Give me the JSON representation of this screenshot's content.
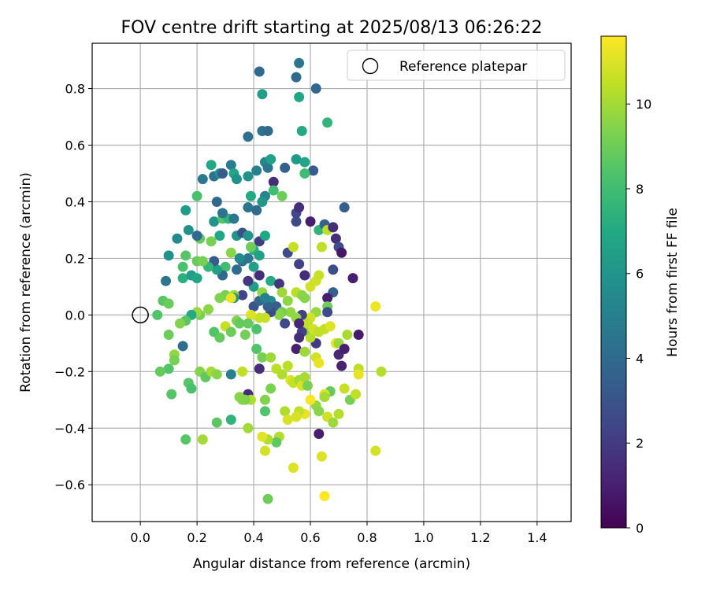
{
  "chart_data": {
    "type": "scatter",
    "title": "FOV centre drift starting at 2025/08/13 06:26:22",
    "xlabel": "Angular distance from reference (arcmin)",
    "ylabel": "Rotation from reference (arcmin)",
    "xlim": [
      -0.17,
      1.52
    ],
    "ylim": [
      -0.73,
      0.96
    ],
    "xticks": [
      0.0,
      0.2,
      0.4,
      0.6,
      0.8,
      1.0,
      1.2,
      1.4
    ],
    "xtick_labels": [
      "0.0",
      "0.2",
      "0.4",
      "0.6",
      "0.8",
      "1.0",
      "1.2",
      "1.4"
    ],
    "yticks": [
      -0.6,
      -0.4,
      -0.2,
      0.0,
      0.2,
      0.4,
      0.6,
      0.8
    ],
    "ytick_labels": [
      "−0.6",
      "−0.4",
      "−0.2",
      "0.0",
      "0.2",
      "0.4",
      "0.6",
      "0.8"
    ],
    "grid": true,
    "legend": {
      "placement": "top-right",
      "entries": [
        "Reference platepar"
      ]
    },
    "reference_point": {
      "x": 0.0,
      "y": 0.0,
      "label": "Reference platepar"
    },
    "colorbar": {
      "label": "Hours from first FF file",
      "range": [
        0,
        11.6
      ],
      "ticks": [
        0,
        2,
        4,
        6,
        8,
        10
      ],
      "tick_labels": [
        "0",
        "2",
        "4",
        "6",
        "8",
        "10"
      ],
      "colormap": "viridis"
    },
    "points_columns": [
      "x",
      "y",
      "hours"
    ],
    "points": [
      [
        0.08,
        0.05,
        8.6
      ],
      [
        0.06,
        0.0,
        8.4
      ],
      [
        0.1,
        0.04,
        8.9
      ],
      [
        0.09,
        0.12,
        4.5
      ],
      [
        0.1,
        0.21,
        5.8
      ],
      [
        0.13,
        0.27,
        5.5
      ],
      [
        0.16,
        0.21,
        8.5
      ],
      [
        0.15,
        0.17,
        8.2
      ],
      [
        0.15,
        0.13,
        7.3
      ],
      [
        0.18,
        0.14,
        6.4
      ],
      [
        0.2,
        0.13,
        6.8
      ],
      [
        0.16,
        0.37,
        6.3
      ],
      [
        0.17,
        0.3,
        5.8
      ],
      [
        0.2,
        0.42,
        8.2
      ],
      [
        0.22,
        0.48,
        4.6
      ],
      [
        0.25,
        0.53,
        6.9
      ],
      [
        0.26,
        0.49,
        4.3
      ],
      [
        0.28,
        0.5,
        5.8
      ],
      [
        0.29,
        0.5,
        3.3
      ],
      [
        0.32,
        0.53,
        4.8
      ],
      [
        0.33,
        0.5,
        6.8
      ],
      [
        0.34,
        0.48,
        5.8
      ],
      [
        0.38,
        0.63,
        4.3
      ],
      [
        0.38,
        0.49,
        5.8
      ],
      [
        0.41,
        0.51,
        5.0
      ],
      [
        0.42,
        0.86,
        4.0
      ],
      [
        0.43,
        0.78,
        6.4
      ],
      [
        0.43,
        0.65,
        4.5
      ],
      [
        0.45,
        0.65,
        4.0
      ],
      [
        0.44,
        0.54,
        5.3
      ],
      [
        0.45,
        0.52,
        4.5
      ],
      [
        0.46,
        0.55,
        6.6
      ],
      [
        0.55,
        0.84,
        4.0
      ],
      [
        0.56,
        0.89,
        4.5
      ],
      [
        0.56,
        0.77,
        6.9
      ],
      [
        0.57,
        0.65,
        7.0
      ],
      [
        0.62,
        0.8,
        3.8
      ],
      [
        0.66,
        0.68,
        7.5
      ],
      [
        0.55,
        0.55,
        6.3
      ],
      [
        0.58,
        0.54,
        6.8
      ],
      [
        0.51,
        0.52,
        3.5
      ],
      [
        0.61,
        0.51,
        3.3
      ],
      [
        0.58,
        0.5,
        8.0
      ],
      [
        0.47,
        0.47,
        1.5
      ],
      [
        0.47,
        0.44,
        8.0
      ],
      [
        0.5,
        0.42,
        9.0
      ],
      [
        0.44,
        0.42,
        5.2
      ],
      [
        0.43,
        0.4,
        6.1
      ],
      [
        0.39,
        0.42,
        7.0
      ],
      [
        0.41,
        0.37,
        4.0
      ],
      [
        0.38,
        0.38,
        4.5
      ],
      [
        0.27,
        0.4,
        3.9
      ],
      [
        0.26,
        0.33,
        6.0
      ],
      [
        0.29,
        0.34,
        8.5
      ],
      [
        0.31,
        0.34,
        7.5
      ],
      [
        0.29,
        0.36,
        4.5
      ],
      [
        0.33,
        0.34,
        4.6
      ],
      [
        0.28,
        0.28,
        6.9
      ],
      [
        0.34,
        0.28,
        6.0
      ],
      [
        0.36,
        0.29,
        2.8
      ],
      [
        0.38,
        0.28,
        6.0
      ],
      [
        0.42,
        0.26,
        2.0
      ],
      [
        0.44,
        0.28,
        6.9
      ],
      [
        0.4,
        0.23,
        7.2
      ],
      [
        0.42,
        0.21,
        6.6
      ],
      [
        0.38,
        0.2,
        4.6
      ],
      [
        0.36,
        0.19,
        4.3
      ],
      [
        0.32,
        0.22,
        9.5
      ],
      [
        0.35,
        0.2,
        5.5
      ],
      [
        0.34,
        0.16,
        4.1
      ],
      [
        0.3,
        0.17,
        8.0
      ],
      [
        0.29,
        0.14,
        4.0
      ],
      [
        0.27,
        0.16,
        6.5
      ],
      [
        0.26,
        0.19,
        3.3
      ],
      [
        0.24,
        0.17,
        7.6
      ],
      [
        0.2,
        0.19,
        8.9
      ],
      [
        0.22,
        0.19,
        9.2
      ],
      [
        0.21,
        0.27,
        8.8
      ],
      [
        0.2,
        0.28,
        4.0
      ],
      [
        0.25,
        0.26,
        9.2
      ],
      [
        0.39,
        0.24,
        9.0
      ],
      [
        0.4,
        0.17,
        6.5
      ],
      [
        0.4,
        0.1,
        6.4
      ],
      [
        0.42,
        0.14,
        1.5
      ],
      [
        0.38,
        0.12,
        1.8
      ],
      [
        0.36,
        0.07,
        2.4
      ],
      [
        0.4,
        0.03,
        3.0
      ],
      [
        0.42,
        0.05,
        3.8
      ],
      [
        0.46,
        0.05,
        5.5
      ],
      [
        0.46,
        0.12,
        7.0
      ],
      [
        0.49,
        0.11,
        1.8
      ],
      [
        0.48,
        0.03,
        3.5
      ],
      [
        0.5,
        0.08,
        9.9
      ],
      [
        0.52,
        0.05,
        9.6
      ],
      [
        0.52,
        0.22,
        2.5
      ],
      [
        0.54,
        0.24,
        10.6
      ],
      [
        0.55,
        0.33,
        2.6
      ],
      [
        0.55,
        0.36,
        2.5
      ],
      [
        0.56,
        0.38,
        1.5
      ],
      [
        0.56,
        0.18,
        2.2
      ],
      [
        0.58,
        0.14,
        1.5
      ],
      [
        0.55,
        0.08,
        10.4
      ],
      [
        0.57,
        0.07,
        9.6
      ],
      [
        0.58,
        0.06,
        9.5
      ],
      [
        0.6,
        0.1,
        10.8
      ],
      [
        0.62,
        0.12,
        10.8
      ],
      [
        0.63,
        0.14,
        10.6
      ],
      [
        0.6,
        0.33,
        1.0
      ],
      [
        0.64,
        0.24,
        10.5
      ],
      [
        0.63,
        0.3,
        7.5
      ],
      [
        0.65,
        0.32,
        3.6
      ],
      [
        0.66,
        0.3,
        10.4
      ],
      [
        0.68,
        0.31,
        1.5
      ],
      [
        0.69,
        0.27,
        1.5
      ],
      [
        0.7,
        0.24,
        2.6
      ],
      [
        0.71,
        0.22,
        0.7
      ],
      [
        0.72,
        0.38,
        3.5
      ],
      [
        0.68,
        0.16,
        2.8
      ],
      [
        0.68,
        0.08,
        3.6
      ],
      [
        0.66,
        0.06,
        1.0
      ],
      [
        0.66,
        0.03,
        9.0
      ],
      [
        0.66,
        0.01,
        2.6
      ],
      [
        0.62,
        0.01,
        9.8
      ],
      [
        0.6,
        -0.01,
        10.8
      ],
      [
        0.57,
        0.0,
        2.2
      ],
      [
        0.55,
        -0.01,
        9.7
      ],
      [
        0.53,
        0.01,
        9.7
      ],
      [
        0.5,
        0.01,
        9.2
      ],
      [
        0.49,
        0.0,
        9.5
      ],
      [
        0.46,
        0.01,
        2.5
      ],
      [
        0.45,
        0.03,
        3.6
      ],
      [
        0.43,
        0.08,
        9.7
      ],
      [
        0.42,
        -0.01,
        10.6
      ],
      [
        0.44,
        -0.01,
        10.6
      ],
      [
        0.44,
        0.06,
        5.0
      ],
      [
        0.39,
        0.0,
        11.0
      ],
      [
        0.38,
        -0.03,
        8.8
      ],
      [
        0.34,
        -0.02,
        9.4
      ],
      [
        0.33,
        0.07,
        9.9
      ],
      [
        0.33,
        0.06,
        6.0
      ],
      [
        0.3,
        0.07,
        9.2
      ],
      [
        0.28,
        0.06,
        9.4
      ],
      [
        0.24,
        0.02,
        9.6
      ],
      [
        0.21,
        0.0,
        9.2
      ],
      [
        0.2,
        0.01,
        9.8
      ],
      [
        0.18,
        0.0,
        7.0
      ],
      [
        0.16,
        -0.02,
        8.6
      ],
      [
        0.14,
        -0.03,
        9.4
      ],
      [
        0.1,
        -0.07,
        9.0
      ],
      [
        0.12,
        -0.14,
        9.7
      ],
      [
        0.12,
        -0.16,
        9.2
      ],
      [
        0.15,
        -0.11,
        4.2
      ],
      [
        0.1,
        -0.19,
        8.4
      ],
      [
        0.07,
        -0.2,
        8.8
      ],
      [
        0.11,
        -0.28,
        8.5
      ],
      [
        0.17,
        -0.24,
        8.5
      ],
      [
        0.18,
        -0.26,
        8.2
      ],
      [
        0.21,
        -0.2,
        9.4
      ],
      [
        0.23,
        -0.22,
        8.7
      ],
      [
        0.25,
        -0.2,
        10.0
      ],
      [
        0.27,
        -0.21,
        9.5
      ],
      [
        0.32,
        -0.21,
        5.0
      ],
      [
        0.36,
        -0.2,
        10.5
      ],
      [
        0.26,
        -0.06,
        8.4
      ],
      [
        0.28,
        -0.08,
        8.8
      ],
      [
        0.3,
        -0.04,
        10.6
      ],
      [
        0.32,
        -0.06,
        9.0
      ],
      [
        0.35,
        -0.03,
        8.8
      ],
      [
        0.37,
        -0.07,
        9.1
      ],
      [
        0.41,
        -0.12,
        8.4
      ],
      [
        0.41,
        -0.05,
        8.3
      ],
      [
        0.42,
        -0.19,
        1.5
      ],
      [
        0.43,
        -0.15,
        9.2
      ],
      [
        0.46,
        -0.15,
        9.9
      ],
      [
        0.48,
        -0.19,
        10.4
      ],
      [
        0.5,
        -0.21,
        10.2
      ],
      [
        0.52,
        -0.18,
        10.4
      ],
      [
        0.53,
        -0.23,
        11.0
      ],
      [
        0.54,
        -0.24,
        10.6
      ],
      [
        0.56,
        -0.23,
        10.0
      ],
      [
        0.57,
        -0.25,
        11.0
      ],
      [
        0.58,
        -0.22,
        10.1
      ],
      [
        0.59,
        -0.25,
        9.2
      ],
      [
        0.62,
        -0.15,
        10.8
      ],
      [
        0.63,
        -0.17,
        11.2
      ],
      [
        0.62,
        -0.1,
        2.0
      ],
      [
        0.6,
        -0.08,
        10.3
      ],
      [
        0.59,
        -0.05,
        9.5
      ],
      [
        0.59,
        -0.03,
        10.5
      ],
      [
        0.61,
        -0.05,
        10.8
      ],
      [
        0.63,
        -0.06,
        10.5
      ],
      [
        0.65,
        -0.05,
        10.5
      ],
      [
        0.67,
        -0.04,
        11.0
      ],
      [
        0.69,
        -0.1,
        11.2
      ],
      [
        0.7,
        -0.1,
        9.8
      ],
      [
        0.73,
        -0.07,
        10.1
      ],
      [
        0.77,
        -0.07,
        0.8
      ],
      [
        0.7,
        -0.14,
        1.3
      ],
      [
        0.71,
        -0.18,
        1.1
      ],
      [
        0.72,
        -0.12,
        1.0
      ],
      [
        0.57,
        -0.06,
        2.2
      ],
      [
        0.56,
        -0.03,
        1.2
      ],
      [
        0.56,
        -0.08,
        1.5
      ],
      [
        0.51,
        -0.03,
        2.6
      ],
      [
        0.55,
        -0.12,
        1.0
      ],
      [
        0.58,
        -0.13,
        9.9
      ],
      [
        0.77,
        -0.19,
        10.4
      ],
      [
        0.77,
        -0.21,
        11.2
      ],
      [
        0.72,
        -0.26,
        10.6
      ],
      [
        0.74,
        -0.3,
        9.2
      ],
      [
        0.76,
        -0.28,
        10.5
      ],
      [
        0.67,
        -0.27,
        8.8
      ],
      [
        0.65,
        -0.28,
        11.0
      ],
      [
        0.65,
        -0.29,
        10.0
      ],
      [
        0.62,
        -0.32,
        9.7
      ],
      [
        0.6,
        -0.3,
        11.5
      ],
      [
        0.63,
        -0.34,
        9.5
      ],
      [
        0.63,
        -0.42,
        1.0
      ],
      [
        0.66,
        -0.36,
        10.8
      ],
      [
        0.68,
        -0.38,
        9.9
      ],
      [
        0.7,
        -0.35,
        10.3
      ],
      [
        0.58,
        -0.35,
        11.2
      ],
      [
        0.56,
        -0.34,
        10.5
      ],
      [
        0.55,
        -0.36,
        10.9
      ],
      [
        0.51,
        -0.34,
        10.2
      ],
      [
        0.52,
        -0.37,
        10.9
      ],
      [
        0.49,
        -0.43,
        10.3
      ],
      [
        0.48,
        -0.45,
        8.7
      ],
      [
        0.45,
        -0.44,
        10.2
      ],
      [
        0.43,
        -0.43,
        11.1
      ],
      [
        0.44,
        -0.48,
        10.8
      ],
      [
        0.46,
        -0.26,
        9.3
      ],
      [
        0.44,
        -0.3,
        9.4
      ],
      [
        0.44,
        -0.34,
        8.4
      ],
      [
        0.38,
        -0.28,
        1.5
      ],
      [
        0.39,
        -0.3,
        10.2
      ],
      [
        0.36,
        -0.3,
        9.6
      ],
      [
        0.37,
        -0.3,
        9.4
      ],
      [
        0.35,
        -0.29,
        9.5
      ],
      [
        0.38,
        -0.4,
        10.0
      ],
      [
        0.32,
        -0.37,
        7.5
      ],
      [
        0.27,
        -0.38,
        8.6
      ],
      [
        0.22,
        -0.44,
        10.0
      ],
      [
        0.16,
        -0.44,
        8.5
      ],
      [
        0.54,
        -0.54,
        11.0
      ],
      [
        0.45,
        -0.65,
        9.0
      ],
      [
        0.64,
        -0.5,
        11.0
      ],
      [
        0.65,
        -0.64,
        11.6
      ],
      [
        0.83,
        -0.48,
        10.8
      ],
      [
        0.85,
        -0.2,
        10.3
      ],
      [
        0.83,
        0.03,
        11.3
      ],
      [
        0.75,
        0.13,
        1.0
      ],
      [
        0.32,
        0.06,
        11.2
      ]
    ]
  }
}
